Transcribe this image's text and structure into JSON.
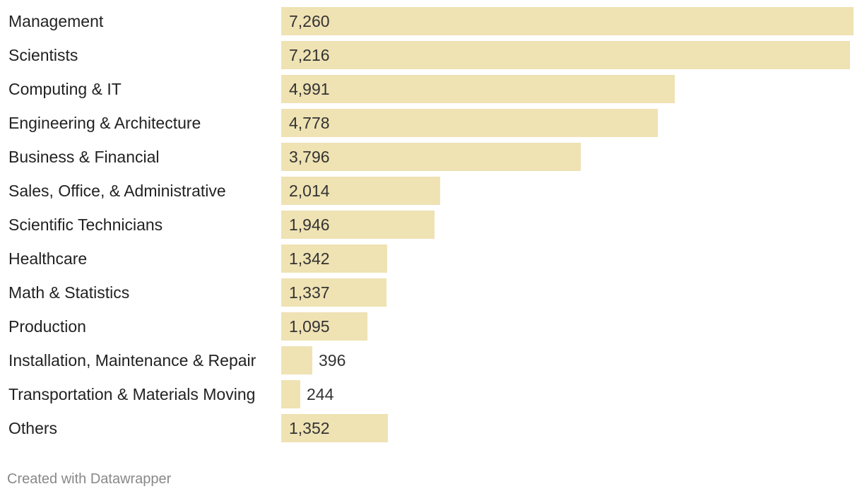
{
  "chart_data": {
    "type": "bar",
    "orientation": "horizontal",
    "title": "",
    "xlabel": "",
    "ylabel": "",
    "categories": [
      "Management",
      "Scientists",
      "Computing & IT",
      "Engineering & Architecture",
      "Business & Financial",
      "Sales, Office, & Administrative",
      "Scientific Technicians",
      "Healthcare",
      "Math & Statistics",
      "Production",
      "Installation, Maintenance & Repair",
      "Transportation & Materials Moving",
      "Others"
    ],
    "values": [
      7260,
      7216,
      4991,
      4778,
      3796,
      2014,
      1946,
      1342,
      1337,
      1095,
      396,
      244,
      1352
    ],
    "value_labels": [
      "7,260",
      "7,216",
      "4,991",
      "4,778",
      "3,796",
      "2,014",
      "1,946",
      "1,342",
      "1,337",
      "1,095",
      "396",
      "244",
      "1,352"
    ],
    "xlim": [
      0,
      7260
    ],
    "grid": false,
    "bar_color": "#efe2b3"
  },
  "footer": {
    "credit": "Created with Datawrapper"
  }
}
